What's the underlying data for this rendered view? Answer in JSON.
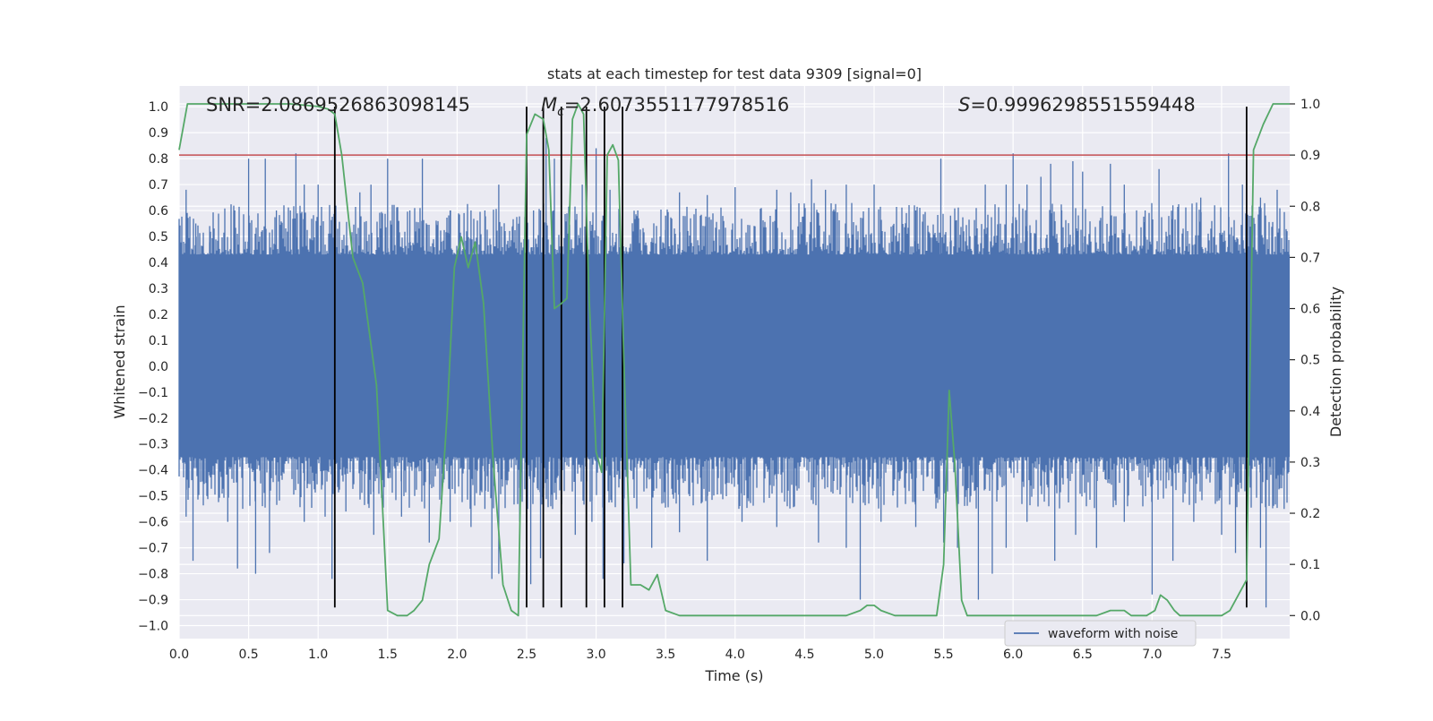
{
  "chart_data": {
    "type": "line",
    "title": "stats at each timestep for test data 9309 [signal=0]",
    "xlabel": "Time (s)",
    "ylabel": "Whitened strain",
    "y2label": "Detection probability",
    "xlim": [
      0,
      7.99
    ],
    "ylim": [
      -1.05,
      1.08
    ],
    "y2lim": [
      -0.045,
      1.035
    ],
    "x_ticks": [
      0.0,
      0.5,
      1.0,
      1.5,
      2.0,
      2.5,
      3.0,
      3.5,
      4.0,
      4.5,
      5.0,
      5.5,
      6.0,
      6.5,
      7.0,
      7.5
    ],
    "x_tick_labels": [
      "0.0",
      "0.5",
      "1.0",
      "1.5",
      "2.0",
      "2.5",
      "3.0",
      "3.5",
      "4.0",
      "4.5",
      "5.0",
      "5.5",
      "6.0",
      "6.5",
      "7.0",
      "7.5"
    ],
    "y_ticks": [
      1.0,
      0.9,
      0.8,
      0.7,
      0.6,
      0.5,
      0.4,
      0.3,
      0.2,
      0.1,
      0.0,
      -0.1,
      -0.2,
      -0.3,
      -0.4,
      -0.5,
      -0.6,
      -0.7,
      -0.8,
      -0.9,
      -1.0
    ],
    "y_tick_labels": [
      "1.0",
      "0.9",
      "0.8",
      "0.7",
      "0.6",
      "0.5",
      "0.4",
      "0.3",
      "0.2",
      "0.1",
      "0.0",
      "−0.1",
      "−0.2",
      "−0.3",
      "−0.4",
      "−0.5",
      "−0.6",
      "−0.7",
      "−0.8",
      "−0.9",
      "−1.0"
    ],
    "y2_ticks": [
      1.0,
      0.9,
      0.8,
      0.7,
      0.6,
      0.5,
      0.4,
      0.3,
      0.2,
      0.1,
      0.0
    ],
    "y2_tick_labels": [
      "1.0",
      "0.9",
      "0.8",
      "0.7",
      "0.6",
      "0.5",
      "0.4",
      "0.3",
      "0.2",
      "0.1",
      "0.0"
    ],
    "grid": true,
    "annotations": {
      "snr": "SNR=2.0869526863098145",
      "mc_symbol": "M",
      "mc_sub": "c",
      "mc_value": "=2.6073551177978516",
      "s_symbol": "S",
      "s_value": "=0.9996298551559448"
    },
    "legend": {
      "label": "waveform with noise",
      "placement": "lower-right"
    },
    "threshold_probability": 0.9,
    "event_lines_x": [
      1.12,
      2.5,
      2.62,
      2.75,
      2.93,
      3.06,
      3.19,
      7.68
    ],
    "waveform": {
      "name": "waveform with noise",
      "color": "#4c72b0",
      "band_upper": 0.43,
      "band_lower": -0.35,
      "peaks_positive": [
        [
          0.05,
          0.68
        ],
        [
          0.12,
          0.55
        ],
        [
          0.22,
          0.54
        ],
        [
          0.4,
          0.6
        ],
        [
          0.5,
          0.8
        ],
        [
          0.62,
          0.8
        ],
        [
          0.7,
          0.6
        ],
        [
          0.8,
          0.6
        ],
        [
          0.84,
          0.82
        ],
        [
          0.9,
          0.7
        ],
        [
          1.0,
          0.7
        ],
        [
          1.12,
          0.58
        ],
        [
          1.3,
          0.67
        ],
        [
          1.38,
          0.7
        ],
        [
          1.5,
          0.8
        ],
        [
          1.58,
          0.56
        ],
        [
          1.66,
          0.6
        ],
        [
          1.75,
          0.8
        ],
        [
          1.85,
          0.55
        ],
        [
          1.95,
          0.6
        ],
        [
          2.05,
          0.59
        ],
        [
          2.1,
          0.6
        ],
        [
          2.2,
          0.6
        ],
        [
          2.3,
          0.7
        ],
        [
          2.4,
          0.54
        ],
        [
          2.55,
          0.6
        ],
        [
          2.6,
          0.6
        ],
        [
          2.64,
          0.88
        ],
        [
          2.7,
          0.8
        ],
        [
          2.9,
          0.7
        ],
        [
          3.0,
          0.84
        ],
        [
          3.05,
          0.58
        ],
        [
          3.1,
          0.68
        ],
        [
          3.19,
          0.7
        ],
        [
          3.3,
          0.6
        ],
        [
          3.5,
          0.58
        ],
        [
          3.6,
          0.67
        ],
        [
          3.8,
          0.66
        ],
        [
          4.0,
          0.69
        ],
        [
          4.3,
          0.68
        ],
        [
          4.4,
          0.67
        ],
        [
          4.55,
          0.72
        ],
        [
          4.65,
          0.68
        ],
        [
          4.8,
          0.7
        ],
        [
          5.0,
          0.7
        ],
        [
          5.2,
          0.58
        ],
        [
          5.3,
          0.6
        ],
        [
          5.48,
          0.8
        ],
        [
          5.55,
          0.58
        ],
        [
          5.8,
          0.7
        ],
        [
          5.95,
          0.7
        ],
        [
          6.0,
          0.82
        ],
        [
          6.1,
          0.7
        ],
        [
          6.2,
          0.73
        ],
        [
          6.27,
          0.78
        ],
        [
          6.35,
          0.6
        ],
        [
          6.43,
          0.79
        ],
        [
          6.5,
          0.75
        ],
        [
          6.7,
          0.78
        ],
        [
          6.8,
          0.7
        ],
        [
          6.95,
          0.6
        ],
        [
          7.05,
          0.76
        ],
        [
          7.15,
          0.62
        ],
        [
          7.35,
          0.65
        ],
        [
          7.45,
          0.62
        ],
        [
          7.55,
          0.82
        ],
        [
          7.65,
          0.7
        ],
        [
          7.78,
          0.65
        ],
        [
          7.9,
          0.68
        ]
      ],
      "peaks_negative": [
        [
          0.05,
          -0.58
        ],
        [
          0.1,
          -0.75
        ],
        [
          0.2,
          -0.5
        ],
        [
          0.35,
          -0.6
        ],
        [
          0.42,
          -0.78
        ],
        [
          0.55,
          -0.8
        ],
        [
          0.65,
          -0.72
        ],
        [
          0.9,
          -0.6
        ],
        [
          1.05,
          -0.58
        ],
        [
          1.1,
          -0.82
        ],
        [
          1.2,
          -0.56
        ],
        [
          1.4,
          -0.65
        ],
        [
          1.6,
          -0.58
        ],
        [
          1.8,
          -0.68
        ],
        [
          1.95,
          -0.6
        ],
        [
          2.1,
          -0.62
        ],
        [
          2.2,
          -0.55
        ],
        [
          2.25,
          -0.82
        ],
        [
          2.3,
          -0.8
        ],
        [
          2.45,
          -0.6
        ],
        [
          2.53,
          -0.84
        ],
        [
          2.6,
          -0.74
        ],
        [
          2.75,
          -0.84
        ],
        [
          2.85,
          -0.65
        ],
        [
          2.97,
          -0.6
        ],
        [
          3.05,
          -0.82
        ],
        [
          3.2,
          -0.76
        ],
        [
          3.4,
          -0.7
        ],
        [
          3.6,
          -0.64
        ],
        [
          3.8,
          -0.75
        ],
        [
          4.05,
          -0.6
        ],
        [
          4.3,
          -0.62
        ],
        [
          4.6,
          -0.68
        ],
        [
          4.8,
          -0.7
        ],
        [
          4.9,
          -0.9
        ],
        [
          5.05,
          -0.6
        ],
        [
          5.3,
          -0.62
        ],
        [
          5.5,
          -0.68
        ],
        [
          5.6,
          -0.7
        ],
        [
          5.75,
          -0.9
        ],
        [
          5.85,
          -0.8
        ],
        [
          5.95,
          -0.7
        ],
        [
          6.1,
          -0.6
        ],
        [
          6.3,
          -0.75
        ],
        [
          6.45,
          -0.65
        ],
        [
          6.6,
          -0.7
        ],
        [
          6.8,
          -0.6
        ],
        [
          7.0,
          -0.88
        ],
        [
          7.15,
          -0.75
        ],
        [
          7.3,
          -0.6
        ],
        [
          7.5,
          -0.65
        ],
        [
          7.6,
          -0.72
        ],
        [
          7.78,
          -0.7
        ],
        [
          7.82,
          -0.93
        ],
        [
          7.95,
          -0.55
        ]
      ]
    },
    "probability": {
      "name": "",
      "color": "#55a868",
      "x": [
        0.0,
        0.06,
        0.2,
        0.4,
        0.6,
        0.8,
        1.0,
        1.07,
        1.12,
        1.17,
        1.25,
        1.32,
        1.42,
        1.5,
        1.57,
        1.64,
        1.69,
        1.75,
        1.8,
        1.87,
        1.93,
        1.98,
        2.03,
        2.08,
        2.13,
        2.19,
        2.26,
        2.33,
        2.39,
        2.44,
        2.5,
        2.56,
        2.62,
        2.66,
        2.7,
        2.75,
        2.79,
        2.83,
        2.87,
        2.91,
        2.95,
        3.0,
        3.04,
        3.08,
        3.12,
        3.16,
        3.2,
        3.25,
        3.32,
        3.38,
        3.44,
        3.5,
        3.6,
        3.8,
        4.0,
        4.2,
        4.4,
        4.6,
        4.8,
        4.9,
        4.95,
        5.0,
        5.05,
        5.15,
        5.3,
        5.45,
        5.5,
        5.54,
        5.58,
        5.63,
        5.67,
        5.72,
        5.77,
        5.82,
        5.87,
        5.95,
        6.1,
        6.3,
        6.5,
        6.6,
        6.7,
        6.8,
        6.85,
        6.9,
        6.96,
        7.02,
        7.06,
        7.11,
        7.16,
        7.2,
        7.28,
        7.35,
        7.45,
        7.5,
        7.56,
        7.62,
        7.68,
        7.73,
        7.8,
        7.87,
        7.93,
        7.99
      ],
      "y": [
        0.91,
        1.0,
        1.0,
        1.0,
        1.0,
        1.0,
        0.995,
        0.99,
        0.98,
        0.9,
        0.7,
        0.65,
        0.45,
        0.01,
        0.0,
        0.0,
        0.01,
        0.03,
        0.1,
        0.15,
        0.4,
        0.68,
        0.74,
        0.68,
        0.73,
        0.61,
        0.3,
        0.06,
        0.01,
        0.0,
        0.94,
        0.98,
        0.97,
        0.91,
        0.6,
        0.61,
        0.62,
        0.97,
        1.0,
        0.98,
        0.62,
        0.32,
        0.28,
        0.9,
        0.92,
        0.89,
        0.5,
        0.06,
        0.06,
        0.05,
        0.08,
        0.01,
        0.0,
        0.0,
        0.0,
        0.0,
        0.0,
        0.0,
        0.0,
        0.01,
        0.02,
        0.02,
        0.01,
        0.0,
        0.0,
        0.0,
        0.1,
        0.44,
        0.3,
        0.03,
        0.0,
        0.0,
        0.0,
        0.0,
        0.0,
        0.0,
        0.0,
        0.0,
        0.0,
        0.0,
        0.01,
        0.01,
        0.0,
        0.0,
        0.0,
        0.01,
        0.04,
        0.03,
        0.01,
        0.0,
        0.0,
        0.0,
        0.0,
        0.0,
        0.01,
        0.04,
        0.07,
        0.91,
        0.96,
        1.0,
        1.0,
        1.0
      ]
    },
    "colors": {
      "background": "#eaeaf2",
      "grid": "#ffffff",
      "threshold": "#c44e52",
      "event": "#000000",
      "text": "#262626",
      "legend_bg": "#eaeaf2",
      "legend_border": "#cccccc"
    }
  }
}
